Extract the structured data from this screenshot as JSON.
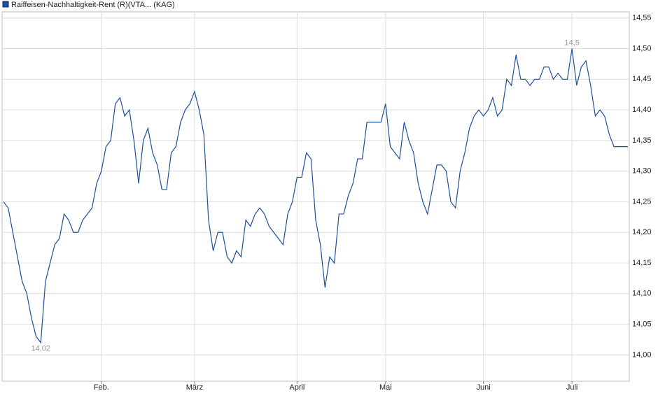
{
  "chart_data": {
    "type": "line",
    "legend": "top-left",
    "grid": true,
    "min_label": "14,02",
    "max_label": "14,5",
    "categories": [
      null,
      null,
      null,
      null,
      null,
      null,
      null,
      null,
      null,
      null,
      null,
      null,
      null,
      null,
      null,
      null,
      null,
      null,
      null,
      null,
      null,
      "Feb.",
      null,
      null,
      null,
      null,
      null,
      null,
      null,
      null,
      null,
      null,
      null,
      null,
      null,
      null,
      null,
      null,
      null,
      null,
      null,
      "März",
      null,
      null,
      null,
      null,
      null,
      null,
      null,
      null,
      null,
      null,
      null,
      null,
      null,
      null,
      null,
      null,
      null,
      null,
      null,
      null,
      null,
      "April",
      null,
      null,
      null,
      null,
      null,
      null,
      null,
      null,
      null,
      null,
      null,
      null,
      null,
      null,
      null,
      null,
      null,
      null,
      "Mai",
      null,
      null,
      null,
      null,
      null,
      null,
      null,
      null,
      null,
      null,
      null,
      null,
      null,
      null,
      null,
      null,
      null,
      null,
      null,
      null,
      "Juni",
      null,
      null,
      null,
      null,
      null,
      null,
      null,
      null,
      null,
      null,
      null,
      null,
      null,
      null,
      null,
      null,
      null,
      null,
      "Juli",
      null,
      null,
      null,
      null,
      null,
      null,
      null,
      null,
      null,
      null,
      null,
      null
    ],
    "series": [
      {
        "name": "Raiffeisen-Nachhaltigkeit-Rent (R)(VTA... (KAG)",
        "color": "#1f4e9a",
        "values": [
          14.25,
          14.24,
          14.2,
          14.16,
          14.12,
          14.1,
          14.06,
          14.03,
          14.02,
          14.12,
          14.15,
          14.18,
          14.19,
          14.23,
          14.22,
          14.2,
          14.2,
          14.22,
          14.23,
          14.24,
          14.28,
          14.3,
          14.34,
          14.35,
          14.41,
          14.42,
          14.39,
          14.4,
          14.35,
          14.28,
          14.35,
          14.37,
          14.33,
          14.31,
          14.27,
          14.27,
          14.33,
          14.34,
          14.38,
          14.4,
          14.41,
          14.43,
          14.4,
          14.36,
          14.22,
          14.17,
          14.2,
          14.2,
          14.16,
          14.15,
          14.17,
          14.16,
          14.22,
          14.21,
          14.23,
          14.24,
          14.23,
          14.21,
          14.2,
          14.19,
          14.18,
          14.23,
          14.25,
          14.29,
          14.29,
          14.33,
          14.32,
          14.22,
          14.18,
          14.11,
          14.16,
          14.15,
          14.23,
          14.23,
          14.26,
          14.28,
          14.32,
          14.32,
          14.38,
          14.38,
          14.38,
          14.38,
          14.41,
          14.34,
          14.33,
          14.32,
          14.38,
          14.35,
          14.33,
          14.28,
          14.25,
          14.23,
          14.27,
          14.31,
          14.31,
          14.3,
          14.25,
          14.24,
          14.3,
          14.33,
          14.37,
          14.39,
          14.4,
          14.39,
          14.4,
          14.42,
          14.39,
          14.4,
          14.45,
          14.44,
          14.49,
          14.45,
          14.45,
          14.44,
          14.45,
          14.45,
          14.47,
          14.47,
          14.45,
          14.46,
          14.45,
          14.45,
          14.5,
          14.44,
          14.47,
          14.48,
          14.44,
          14.39,
          14.4,
          14.39,
          14.36,
          14.34,
          14.34,
          14.34,
          14.34
        ]
      }
    ],
    "ylim": [
      13.957,
      14.56
    ],
    "yticks": [
      {
        "value": 14.0,
        "label": "14,00"
      },
      {
        "value": 14.05,
        "label": "14,05"
      },
      {
        "value": 14.1,
        "label": "14,10"
      },
      {
        "value": 14.15,
        "label": "14,15"
      },
      {
        "value": 14.2,
        "label": "14,20"
      },
      {
        "value": 14.25,
        "label": "14,25"
      },
      {
        "value": 14.3,
        "label": "14,30"
      },
      {
        "value": 14.35,
        "label": "14,35"
      },
      {
        "value": 14.4,
        "label": "14,40"
      },
      {
        "value": 14.45,
        "label": "14,45"
      },
      {
        "value": 14.5,
        "label": "14,50"
      },
      {
        "value": 14.55,
        "label": "14,55"
      }
    ]
  }
}
